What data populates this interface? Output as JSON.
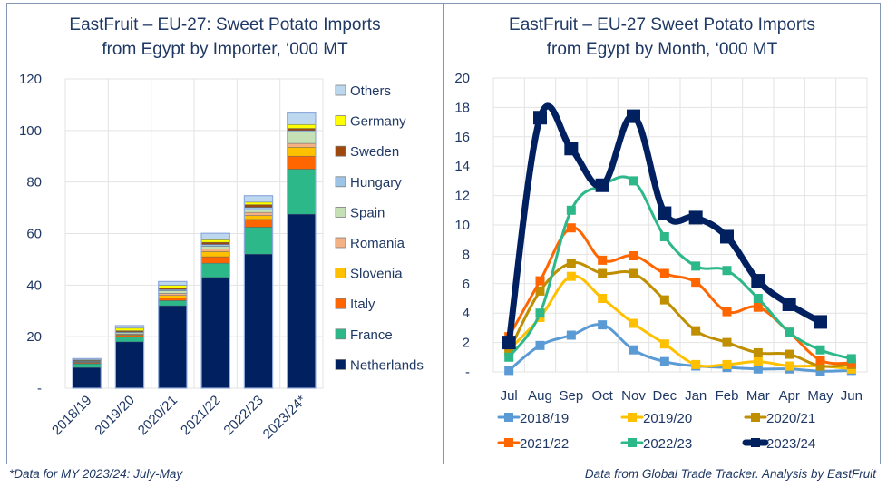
{
  "footnotes": {
    "left": "*Data for MY 2023/24: July-May",
    "right": "Data from Global Trade Tracker. Analysis by EastFruit"
  },
  "chart_data": [
    {
      "type": "bar",
      "stacked": true,
      "title_line1": "EastFruit – EU-27: Sweet Potato Imports",
      "title_line2": "from Egypt by Importer, ‘000 MT",
      "xlabel": "",
      "ylabel": "",
      "ylim": [
        0,
        120
      ],
      "yticks": [
        0,
        20,
        40,
        60,
        80,
        100,
        120
      ],
      "ytick_labels": [
        "-",
        "20",
        "40",
        "60",
        "80",
        "100",
        "120"
      ],
      "grid": true,
      "legend_position": "right",
      "categories": [
        "2018/19",
        "2019/20",
        "2020/21",
        "2021/22",
        "2022/23",
        "2023/24*"
      ],
      "series": [
        {
          "name": "Netherlands",
          "color": "#002060",
          "values": [
            8.0,
            18.0,
            32.0,
            43.0,
            52.0,
            67.5
          ]
        },
        {
          "name": "France",
          "color": "#2db88a",
          "values": [
            1.5,
            2.0,
            2.0,
            5.5,
            10.5,
            17.5
          ]
        },
        {
          "name": "Italy",
          "color": "#ff6600",
          "values": [
            0.3,
            0.5,
            1.0,
            2.5,
            3.0,
            5.0
          ]
        },
        {
          "name": "Slovenia",
          "color": "#ffc000",
          "values": [
            0.2,
            0.3,
            1.0,
            2.0,
            1.5,
            3.5
          ]
        },
        {
          "name": "Romania",
          "color": "#f4b183",
          "values": [
            0.2,
            0.3,
            0.8,
            1.0,
            1.2,
            1.5
          ]
        },
        {
          "name": "Spain",
          "color": "#c5e0b4",
          "values": [
            0.2,
            0.5,
            1.0,
            1.0,
            1.0,
            4.5
          ]
        },
        {
          "name": "Hungary",
          "color": "#9dc3e6",
          "values": [
            0.2,
            0.3,
            0.5,
            0.8,
            1.0,
            0.5
          ]
        },
        {
          "name": "Sweden",
          "color": "#9e480e",
          "values": [
            0.2,
            0.4,
            0.6,
            0.8,
            1.0,
            0.8
          ]
        },
        {
          "name": "Germany",
          "color": "#ffff00",
          "values": [
            0.2,
            1.0,
            1.0,
            1.0,
            1.0,
            1.5
          ]
        },
        {
          "name": "Others",
          "color": "#bdd7ee",
          "values": [
            0.5,
            1.0,
            1.5,
            2.5,
            2.5,
            4.5
          ]
        }
      ]
    },
    {
      "type": "line",
      "title_line1": "EastFruit – EU-27 Sweet Potato Imports",
      "title_line2": "from Egypt by Month, ‘000 MT",
      "xlabel": "",
      "ylabel": "",
      "ylim": [
        0,
        20
      ],
      "yticks": [
        0,
        2,
        4,
        6,
        8,
        10,
        12,
        14,
        16,
        18,
        20
      ],
      "ytick_labels": [
        "-",
        "2",
        "4",
        "6",
        "8",
        "10",
        "12",
        "14",
        "16",
        "18",
        "20"
      ],
      "grid": true,
      "legend_position": "bottom",
      "x": [
        "Jul",
        "Aug",
        "Sep",
        "Oct",
        "Nov",
        "Dec",
        "Jan",
        "Feb",
        "Mar",
        "Apr",
        "May",
        "Jun"
      ],
      "series": [
        {
          "name": "2018/19",
          "color": "#5b9bd5",
          "values": [
            0.1,
            1.8,
            2.5,
            3.2,
            1.5,
            0.7,
            0.4,
            0.3,
            0.2,
            0.2,
            0.05,
            0.1
          ]
        },
        {
          "name": "2019/20",
          "color": "#ffc000",
          "values": [
            1.5,
            3.7,
            6.5,
            5.0,
            3.3,
            1.9,
            0.5,
            0.5,
            0.7,
            0.4,
            0.4,
            0.2
          ]
        },
        {
          "name": "2020/21",
          "color": "#bf8f00",
          "values": [
            1.4,
            5.5,
            7.4,
            6.7,
            6.7,
            4.9,
            2.8,
            2.0,
            1.3,
            1.2,
            0.4,
            0.5
          ]
        },
        {
          "name": "2021/22",
          "color": "#ff6600",
          "values": [
            2.4,
            6.2,
            9.8,
            7.6,
            7.9,
            6.7,
            6.1,
            4.1,
            4.4,
            2.7,
            0.8,
            0.6
          ]
        },
        {
          "name": "2022/23",
          "color": "#2db88a",
          "values": [
            1.0,
            4.0,
            11.0,
            12.7,
            13.0,
            9.2,
            7.2,
            6.9,
            5.0,
            2.7,
            1.5,
            0.9
          ]
        },
        {
          "name": "2023/24",
          "color": "#002060",
          "values": [
            2.0,
            17.3,
            15.2,
            12.7,
            17.4,
            10.8,
            10.5,
            9.2,
            6.2,
            4.6,
            3.4,
            null
          ]
        }
      ]
    }
  ]
}
